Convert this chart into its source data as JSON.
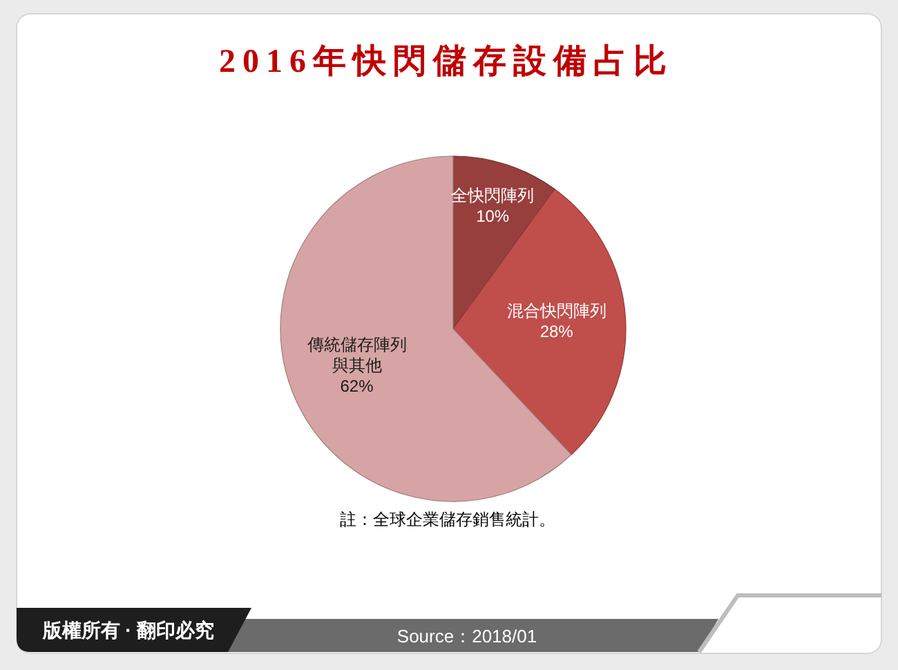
{
  "chart_data": {
    "type": "pie",
    "title": "2016年快閃儲存設備占比",
    "categories": [
      "全快閃陣列",
      "混合快閃陣列",
      "傳統儲存陣列與其他"
    ],
    "values": [
      10,
      28,
      62
    ],
    "value_labels": [
      "10%",
      "28%",
      "62%"
    ],
    "colors": [
      "#963f3d",
      "#c04e4b",
      "#d6a4a4"
    ],
    "annotations": [
      "註：全球企業儲存銷售統計。",
      "版權所有 · 翻印必究",
      "Source：2018/01"
    ]
  }
}
